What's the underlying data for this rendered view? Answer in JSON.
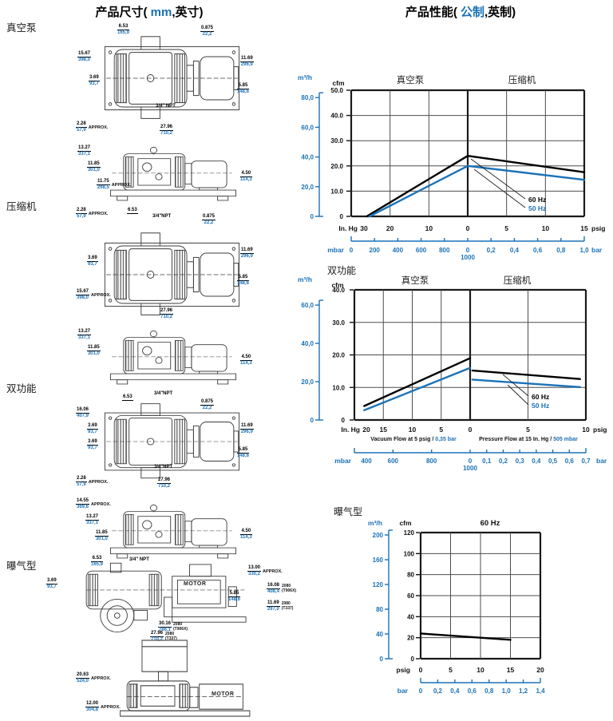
{
  "titles": {
    "dimensions": {
      "prefix": "产品尺寸( ",
      "metric": "mm",
      "suffix": ",英寸)"
    },
    "performance": {
      "prefix": "产品性能( ",
      "metric": "公制",
      "suffix": ",英制)"
    }
  },
  "colors": {
    "accent_blue": "#1a72b8",
    "line_black": "#000000"
  },
  "sections": {
    "vacuum": "真空泵",
    "compressor": "压缩机",
    "dual": "双功能",
    "aeration": "曝气型"
  },
  "drawings": {
    "vacuum_top": {
      "w_top": {
        "in": "6.53",
        "mm": "165,9"
      },
      "shaft": {
        "in": "0.875",
        "mm": "22,2"
      },
      "h_left": {
        "in": "15.67",
        "mm": "398,0"
      },
      "port_off": {
        "in": "3.69",
        "mm": "93,7"
      },
      "h_right": {
        "in": "11.69",
        "mm": "296,9"
      },
      "shaft_h": {
        "in": "5.85",
        "mm": "148,6"
      },
      "approx": {
        "in": "2.28",
        "mm": "57,9",
        "note": "APPROX."
      },
      "len": {
        "in": "27.96",
        "mm": "710,2"
      },
      "npt": "3/4\" NPT"
    },
    "vacuum_side": {
      "h1": {
        "in": "13.27",
        "mm": "337,1"
      },
      "h2": {
        "in": "11.85",
        "mm": "301,0"
      },
      "h3": {
        "in": "11.75",
        "mm": "298,5",
        "note": "APPROX."
      },
      "shaft_h": {
        "in": "4.50",
        "mm": "114,3"
      }
    },
    "compressor_top": {
      "approx": {
        "in": "2.28",
        "mm": "57,9",
        "note": "APPROX."
      },
      "w_top": {
        "in": "6.53"
      },
      "npt": "3/4\"NPT",
      "shaft": {
        "in": "0.875",
        "mm": "22,2"
      },
      "port_off": {
        "in": "3.69",
        "mm": "93,7"
      },
      "h_right": {
        "in": "11.69",
        "mm": "296,9"
      },
      "shaft_h": {
        "in": "5.85",
        "mm": "148,6"
      },
      "h_left": {
        "in": "15.67",
        "mm": "398,0",
        "note": "APPROX."
      },
      "len": {
        "in": "27.96",
        "mm": "710,2"
      }
    },
    "compressor_side": {
      "h1": {
        "in": "13.27",
        "mm": "337,1"
      },
      "h2": {
        "in": "11.85",
        "mm": "301,0"
      },
      "shaft_h": {
        "in": "4.50",
        "mm": "114,3"
      }
    },
    "dual_top": {
      "npt_top": "3/4\"NPT",
      "w_top": {
        "in": "6.53"
      },
      "shaft": {
        "in": "0.875",
        "mm": "22,2"
      },
      "h_left": {
        "in": "16.06",
        "mm": "407,9"
      },
      "port1": {
        "in": "3.69",
        "mm": "93,7"
      },
      "port2": {
        "in": "3.69",
        "mm": "93,7"
      },
      "h_right": {
        "in": "11.69",
        "mm": "296,9"
      },
      "shaft_h": {
        "in": "5.85",
        "mm": "148,6"
      },
      "npt_bot": "3/4\"NPT",
      "approx": {
        "in": "2.28",
        "mm": "57,9",
        "note": "APPROX."
      },
      "len": {
        "in": "27.96",
        "mm": "710,2"
      }
    },
    "dual_side": {
      "h0": {
        "in": "14.55",
        "mm": "369,6",
        "note": "APPROX."
      },
      "h1": {
        "in": "13.27",
        "mm": "337,1"
      },
      "h2": {
        "in": "11.85",
        "mm": "301,0"
      },
      "shaft_h": {
        "in": "4.50",
        "mm": "114,3"
      }
    },
    "aeration_side": {
      "w_top": {
        "in": "6.53",
        "mm": "165,9"
      },
      "npt": "3/4\" NPT",
      "port_off": {
        "in": "3.69",
        "mm": "93,7"
      },
      "motor": "MOTOR",
      "h_frame": {
        "in": "13.00",
        "mm": "330,2",
        "note": "APPROX."
      },
      "shaft_h": {
        "in": "5.85",
        "mm": "148,6"
      },
      "h_906": {
        "in": "16.08",
        "mm": "408,4",
        "note": "2080 (T906X)"
      },
      "h_337": {
        "in": "11.69",
        "mm": "297,0",
        "note": "2080 (T337)"
      },
      "len_906": {
        "in": "30.16",
        "mm": "766,1",
        "note": "2080 (T906X)"
      },
      "len_337": {
        "in": "27.96",
        "mm": "710,2",
        "note": "2080 (T337)"
      }
    },
    "aeration_bottom": {
      "h_tank": {
        "in": "20.63",
        "mm": "524,0",
        "note": "APPROX."
      },
      "h_body": {
        "in": "12.00",
        "mm": "304,8",
        "note": "APPROX."
      },
      "motor": "MOTOR"
    }
  },
  "chart_data": [
    {
      "type": "line",
      "headers": [
        "真空泵",
        "压缩机"
      ],
      "y_metric_unit": "m³/h",
      "y_imperial_unit": "cfm",
      "cfm_ticks": [
        "50.0",
        "40.0",
        "30.0",
        "20.0",
        "10.0",
        "0"
      ],
      "m3h_ticks": [
        "80,0",
        "60,0",
        "40,0",
        "20,0",
        "0"
      ],
      "x_unit_left": "In. Hg",
      "x_unit_right": "psig",
      "x_ticks": [
        "30",
        "20",
        "10",
        "0",
        "5",
        "10",
        "15"
      ],
      "x2_unit_left": "mbar",
      "x2_unit_right": "bar",
      "x2_ticks": [
        "0",
        "200",
        "400",
        "600",
        "800",
        "0",
        "0,2",
        "0,4",
        "0,6",
        "0,8",
        "1,0"
      ],
      "x2_sub": "1000",
      "series": [
        {
          "name": "60 Hz",
          "color": "#000000",
          "segments": [
            [
              [
                -26,
                0
              ],
              [
                0,
                24
              ],
              [
                15,
                17.5
              ]
            ]
          ]
        },
        {
          "name": "50 Hz",
          "color": "#1a72b8",
          "segments": [
            [
              [
                -25.3,
                0
              ],
              [
                0,
                20
              ],
              [
                15,
                14.5
              ]
            ]
          ]
        }
      ]
    },
    {
      "type": "line",
      "label": "双功能",
      "headers": [
        "真空泵",
        "压缩机"
      ],
      "y_metric_unit": "m³/h",
      "y_imperial_unit": "cfm",
      "cfm_ticks": [
        "40.0",
        "30.0",
        "20.0",
        "10.0",
        "0"
      ],
      "m3h_ticks": [
        "60,0",
        "40,0",
        "20,0",
        "0"
      ],
      "x_unit_left": "In. Hg",
      "x_unit_right": "psig",
      "x_ticks": [
        "20",
        "15",
        "10",
        "5",
        "0",
        "5",
        "10"
      ],
      "footnotes": {
        "left_text": "Vacuum Flow at 5 psig / ",
        "left_metric": "0,35 bar",
        "right_text": "Pressure Flow at 15 In. Hg / ",
        "right_metric": "505 mbar"
      },
      "x2_unit_left": "mbar",
      "x2_unit_right": "bar",
      "x2_ticks": [
        "400",
        "600",
        "800",
        "0",
        "0,1",
        "0,2",
        "0,3",
        "0,4",
        "0,5",
        "0,6",
        "0,7"
      ],
      "x2_sub": "1000",
      "series": [
        {
          "name": "60 Hz",
          "color": "#000000",
          "segments": [
            [
              [
                -18.3,
                4.3
              ],
              [
                0,
                19
              ]
            ],
            [
              [
                0.2,
                15.2
              ],
              [
                9.5,
                12.6
              ]
            ]
          ]
        },
        {
          "name": "50 Hz",
          "color": "#1a72b8",
          "segments": [
            [
              [
                -18.3,
                3
              ],
              [
                0,
                16
              ]
            ],
            [
              [
                0.2,
                12.4
              ],
              [
                9.5,
                10.1
              ]
            ]
          ]
        }
      ]
    },
    {
      "type": "line",
      "label": "曝气型",
      "title": "60 Hz",
      "y_metric_unit": "m³/h",
      "y_imperial_unit": "cfm",
      "cfm_ticks": [
        "120",
        "100",
        "80",
        "60",
        "40",
        "20",
        "0"
      ],
      "m3h_ticks": [
        "200",
        "160",
        "120",
        "80",
        "40",
        "0"
      ],
      "x_unit_left": "psig",
      "x_ticks": [
        "0",
        "5",
        "10",
        "15",
        "20"
      ],
      "x2_unit_left": "bar",
      "x2_ticks": [
        "0",
        "0,2",
        "0,4",
        "0,6",
        "0,8",
        "1,0",
        "1,2",
        "1,4"
      ],
      "series": [
        {
          "name": "60 Hz",
          "color": "#000000",
          "segments": [
            [
              [
                0,
                24
              ],
              [
                15,
                18
              ]
            ]
          ]
        }
      ]
    }
  ]
}
